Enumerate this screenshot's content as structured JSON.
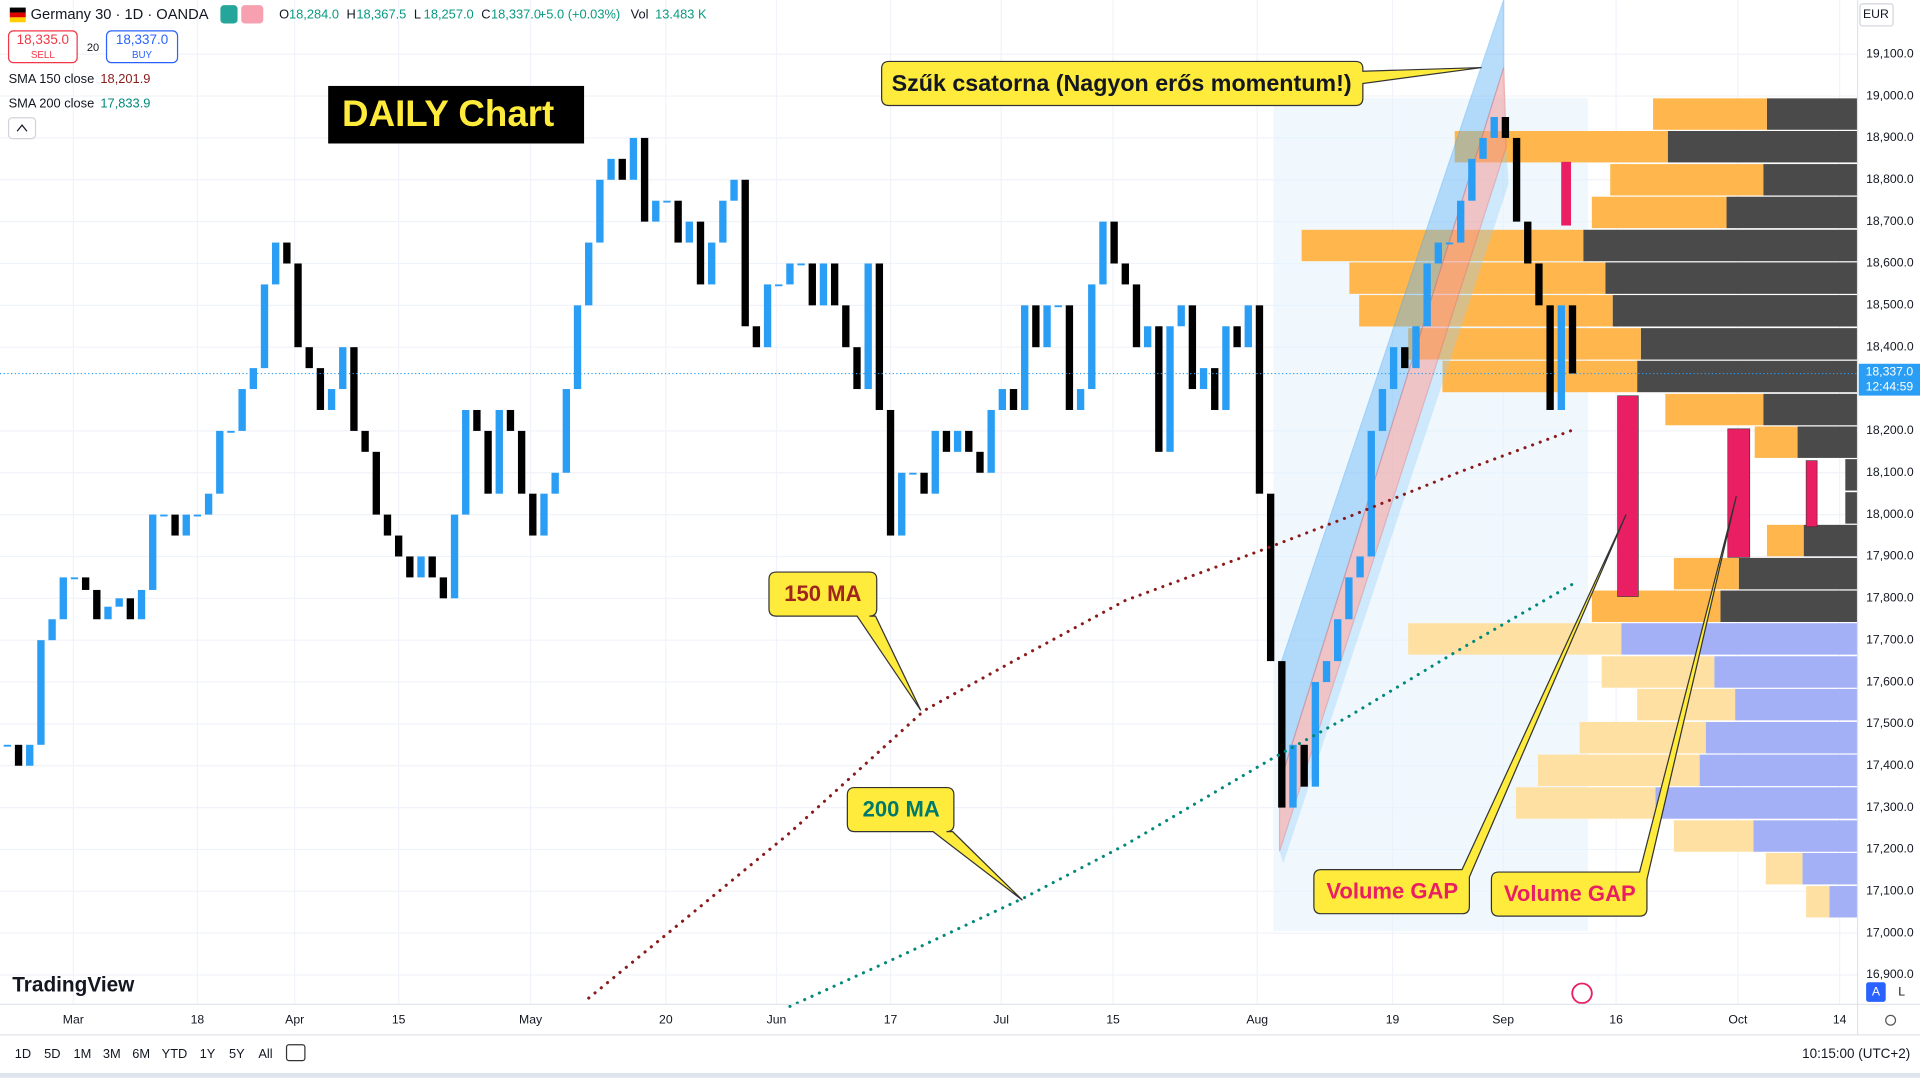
{
  "header": {
    "symbol": "Germany 30 · 1D · OANDA",
    "ohlc": [
      {
        "label": "O",
        "value": "18,284.0"
      },
      {
        "label": "H",
        "value": "18,367.5"
      },
      {
        "label": "L",
        "value": "18,257.0"
      },
      {
        "label": "C",
        "value": "18,337.0"
      }
    ],
    "change": "+5.0 (+0.03%)",
    "vol_label": "Vol",
    "vol": "13.483 K",
    "sell_price": "18,335.0",
    "sell": "SELL",
    "spread": "20",
    "buy_price": "18,337.0",
    "buy": "BUY"
  },
  "chart_data": {
    "type": "candlestick",
    "currency": "EUR",
    "price_label": "18,337.0",
    "countdown": "12:44:59",
    "up_color": "#2a9df4",
    "down_color": "#000000",
    "values": [
      17450,
      17400,
      17450,
      17700,
      17750,
      17850,
      17850,
      17820,
      17750,
      17780,
      17800,
      17750,
      17820,
      18000,
      18000,
      17950,
      18000,
      18000,
      18050,
      18200,
      18200,
      18300,
      18350,
      18550,
      18650,
      18600,
      18400,
      18350,
      18250,
      18300,
      18400,
      18200,
      18150,
      18000,
      17950,
      17900,
      17850,
      17900,
      17850,
      17800,
      18000,
      18250,
      18200,
      18050,
      18250,
      18200,
      18050,
      17950,
      18050,
      18100,
      18300,
      18500,
      18650,
      18800,
      18850,
      18800,
      18900,
      18700,
      18750,
      18750,
      18650,
      18700,
      18550,
      18650,
      18750,
      18800,
      18450,
      18400,
      18550,
      18550,
      18600,
      18600,
      18500,
      18600,
      18500,
      18400,
      18300,
      18600,
      18250,
      17950,
      18100,
      18100,
      18050,
      18200,
      18150,
      18200,
      18150,
      18100,
      18250,
      18300,
      18250,
      18500,
      18400,
      18500,
      18500,
      18250,
      18300,
      18550,
      18700,
      18600,
      18550,
      18400,
      18450,
      18150,
      18450,
      18500,
      18300,
      18350,
      18250,
      18450,
      18400,
      18500,
      18050,
      17650,
      17300,
      17450,
      17350,
      17600,
      17650,
      17750,
      17850,
      17900,
      18200,
      18300,
      18400,
      18350,
      18450,
      18600,
      18650,
      18650,
      18750,
      18850,
      18900,
      18950,
      18900,
      18700,
      18600,
      18500,
      18250,
      18500,
      18337
    ],
    "xlim": [
      -0.66,
      165.5
    ],
    "ylim": [
      16830,
      19229
    ],
    "yticks": [
      {
        "value": 19100,
        "label": "19,100.0"
      },
      {
        "value": 19000,
        "label": "19,000.0"
      },
      {
        "value": 18900,
        "label": "18,900.0"
      },
      {
        "value": 18800,
        "label": "18,800.0"
      },
      {
        "value": 18700,
        "label": "18,700.0"
      },
      {
        "value": 18600,
        "label": "18,600.0"
      },
      {
        "value": 18500,
        "label": "18,500.0"
      },
      {
        "value": 18400,
        "label": "18,400.0"
      },
      {
        "value": 18200,
        "label": "18,200.0"
      },
      {
        "value": 18100,
        "label": "18,100.0"
      },
      {
        "value": 18000,
        "label": "18,000.0"
      },
      {
        "value": 17900,
        "label": "17,900.0"
      },
      {
        "value": 17800,
        "label": "17,800.0"
      },
      {
        "value": 17700,
        "label": "17,700.0"
      },
      {
        "value": 17600,
        "label": "17,600.0"
      },
      {
        "value": 17500,
        "label": "17,500.0"
      },
      {
        "value": 17400,
        "label": "17,400.0"
      },
      {
        "value": 17300,
        "label": "17,300.0"
      },
      {
        "value": 17200,
        "label": "17,200.0"
      },
      {
        "value": 17100,
        "label": "17,100.0"
      },
      {
        "value": 17000,
        "label": "17,000.0"
      },
      {
        "value": 16900,
        "label": "16,900.0"
      }
    ],
    "xticks": [
      {
        "value": 5.9,
        "label": "Mar"
      },
      {
        "value": 17,
        "label": "18"
      },
      {
        "value": 25.7,
        "label": "Apr"
      },
      {
        "value": 35,
        "label": "15"
      },
      {
        "value": 46.8,
        "label": "May"
      },
      {
        "value": 58.9,
        "label": "20"
      },
      {
        "value": 68.8,
        "label": "Jun"
      },
      {
        "value": 79,
        "label": "17"
      },
      {
        "value": 88.9,
        "label": "Jul"
      },
      {
        "value": 98.9,
        "label": "15"
      },
      {
        "value": 111.8,
        "label": "Aug"
      },
      {
        "value": 123.9,
        "label": "19"
      },
      {
        "value": 133.8,
        "label": "Sep"
      },
      {
        "value": 143.9,
        "label": "16"
      },
      {
        "value": 154.8,
        "label": "Oct"
      },
      {
        "value": 163.9,
        "label": "14"
      }
    ],
    "series": [
      {
        "name": "SMA 150 close",
        "value_label": "18,201.9",
        "color": "#8b1a1a",
        "x": [
          52,
          60,
          70,
          82,
          90,
          100,
          112,
          120,
          130,
          140
        ],
        "values": [
          16845,
          17020,
          17240,
          17532,
          17650,
          17795,
          17913,
          17995,
          18103,
          18201.9
        ]
      },
      {
        "name": "SMA 200 close",
        "value_label": "17,833.9",
        "color": "#00897b",
        "x": [
          70,
          80,
          91,
          100,
          113,
          120,
          130,
          140
        ],
        "values": [
          16825,
          16947,
          17085,
          17211,
          17415,
          17518,
          17679,
          17833.9
        ]
      }
    ],
    "volume_profile": {
      "levels": [
        18957,
        18879,
        18800,
        18722,
        18643,
        18565,
        18487,
        18408,
        18330,
        18251,
        18173,
        18095,
        18016,
        17938,
        17859,
        17781,
        17703,
        17624,
        17546,
        17467,
        17389,
        17311,
        17232,
        17154,
        17075
      ],
      "left": [
        93,
        174,
        125,
        110,
        230,
        209,
        207,
        190,
        159,
        80,
        35,
        0,
        0,
        30,
        53,
        105,
        174,
        92,
        80,
        103,
        132,
        114,
        65,
        30,
        19
      ],
      "right": [
        74,
        155,
        77,
        107,
        224,
        206,
        200,
        177,
        180,
        77,
        49,
        10,
        10,
        44,
        97,
        112,
        193,
        117,
        100,
        124,
        129,
        165,
        85,
        45,
        23
      ],
      "left_colors": [
        "#ffb74d",
        "#ffb74d",
        "#ffb74d",
        "#ffb74d",
        "#ffb74d",
        "#ffb74d",
        "#ffb74d",
        "#ffb74d",
        "#ffb74d",
        "#ffb74d",
        "#ffb74d",
        "#ffb74d",
        "#ffb74d",
        "#ffb74d",
        "#ffb74d",
        "#ffb74d",
        "#ffe0a3",
        "#ffe0a3",
        "#ffe0a3",
        "#ffe0a3",
        "#ffe0a3",
        "#ffe0a3",
        "#ffe0a3",
        "#ffe0a3",
        "#ffe0a3"
      ],
      "right_colors": [
        "#4a4a4a",
        "#4a4a4a",
        "#4a4a4a",
        "#4a4a4a",
        "#4a4a4a",
        "#4a4a4a",
        "#4a4a4a",
        "#4a4a4a",
        "#4a4a4a",
        "#4a4a4a",
        "#4a4a4a",
        "#4a4a4a",
        "#4a4a4a",
        "#4a4a4a",
        "#4a4a4a",
        "#4a4a4a",
        "#a4b0f5",
        "#a4b0f5",
        "#a4b0f5",
        "#a4b0f5",
        "#a4b0f5",
        "#a4b0f5",
        "#a4b0f5",
        "#a4b0f5",
        "#a4b0f5"
      ]
    }
  },
  "annotations": {
    "daily": "DAILY Chart",
    "channel": "Szűk csatorna (Nagyon erős momentum!)",
    "ma150": "150 MA",
    "ma200": "200 MA",
    "gap1": "Volume GAP",
    "gap2": "Volume GAP"
  },
  "brand": "TradingView",
  "axis_buttons": [
    "A",
    "L"
  ],
  "toolbar": {
    "ranges": [
      "1D",
      "5D",
      "1M",
      "3M",
      "6M",
      "YTD",
      "1Y",
      "5Y",
      "All"
    ],
    "time": "10:15:00 (UTC+2)"
  }
}
